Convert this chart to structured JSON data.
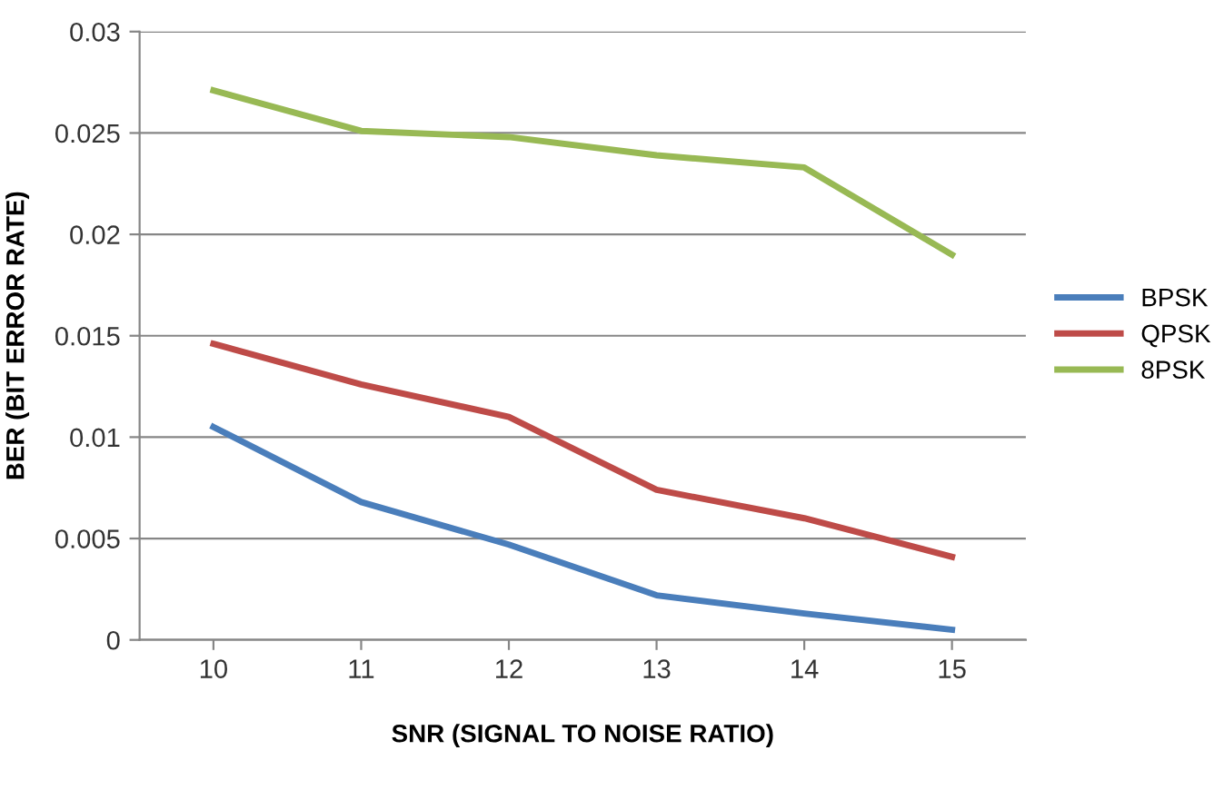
{
  "chart_data": {
    "type": "line",
    "xlabel": "SNR (SIGNAL TO NOISE RATIO)",
    "ylabel": "BER (BIT ERROR RATE)",
    "categories": [
      "10",
      "11",
      "12",
      "13",
      "14",
      "15"
    ],
    "series": [
      {
        "name": "BPSK",
        "color": "#4a7ebb",
        "values": [
          0.0105,
          0.0068,
          0.0047,
          0.0022,
          0.0013,
          0.0005
        ]
      },
      {
        "name": "QPSK",
        "color": "#be4b48",
        "values": [
          0.0146,
          0.0126,
          0.011,
          0.0074,
          0.006,
          0.0041
        ]
      },
      {
        "name": "8PSK",
        "color": "#98b954",
        "values": [
          0.0271,
          0.0251,
          0.0248,
          0.0239,
          0.0233,
          0.019
        ]
      }
    ],
    "ylim": [
      0,
      0.03
    ],
    "yticks": [
      0,
      0.005,
      0.01,
      0.015,
      0.02,
      0.025,
      0.03
    ],
    "grid": "y",
    "legend": "right",
    "marker": "none",
    "line_style": "solid"
  }
}
